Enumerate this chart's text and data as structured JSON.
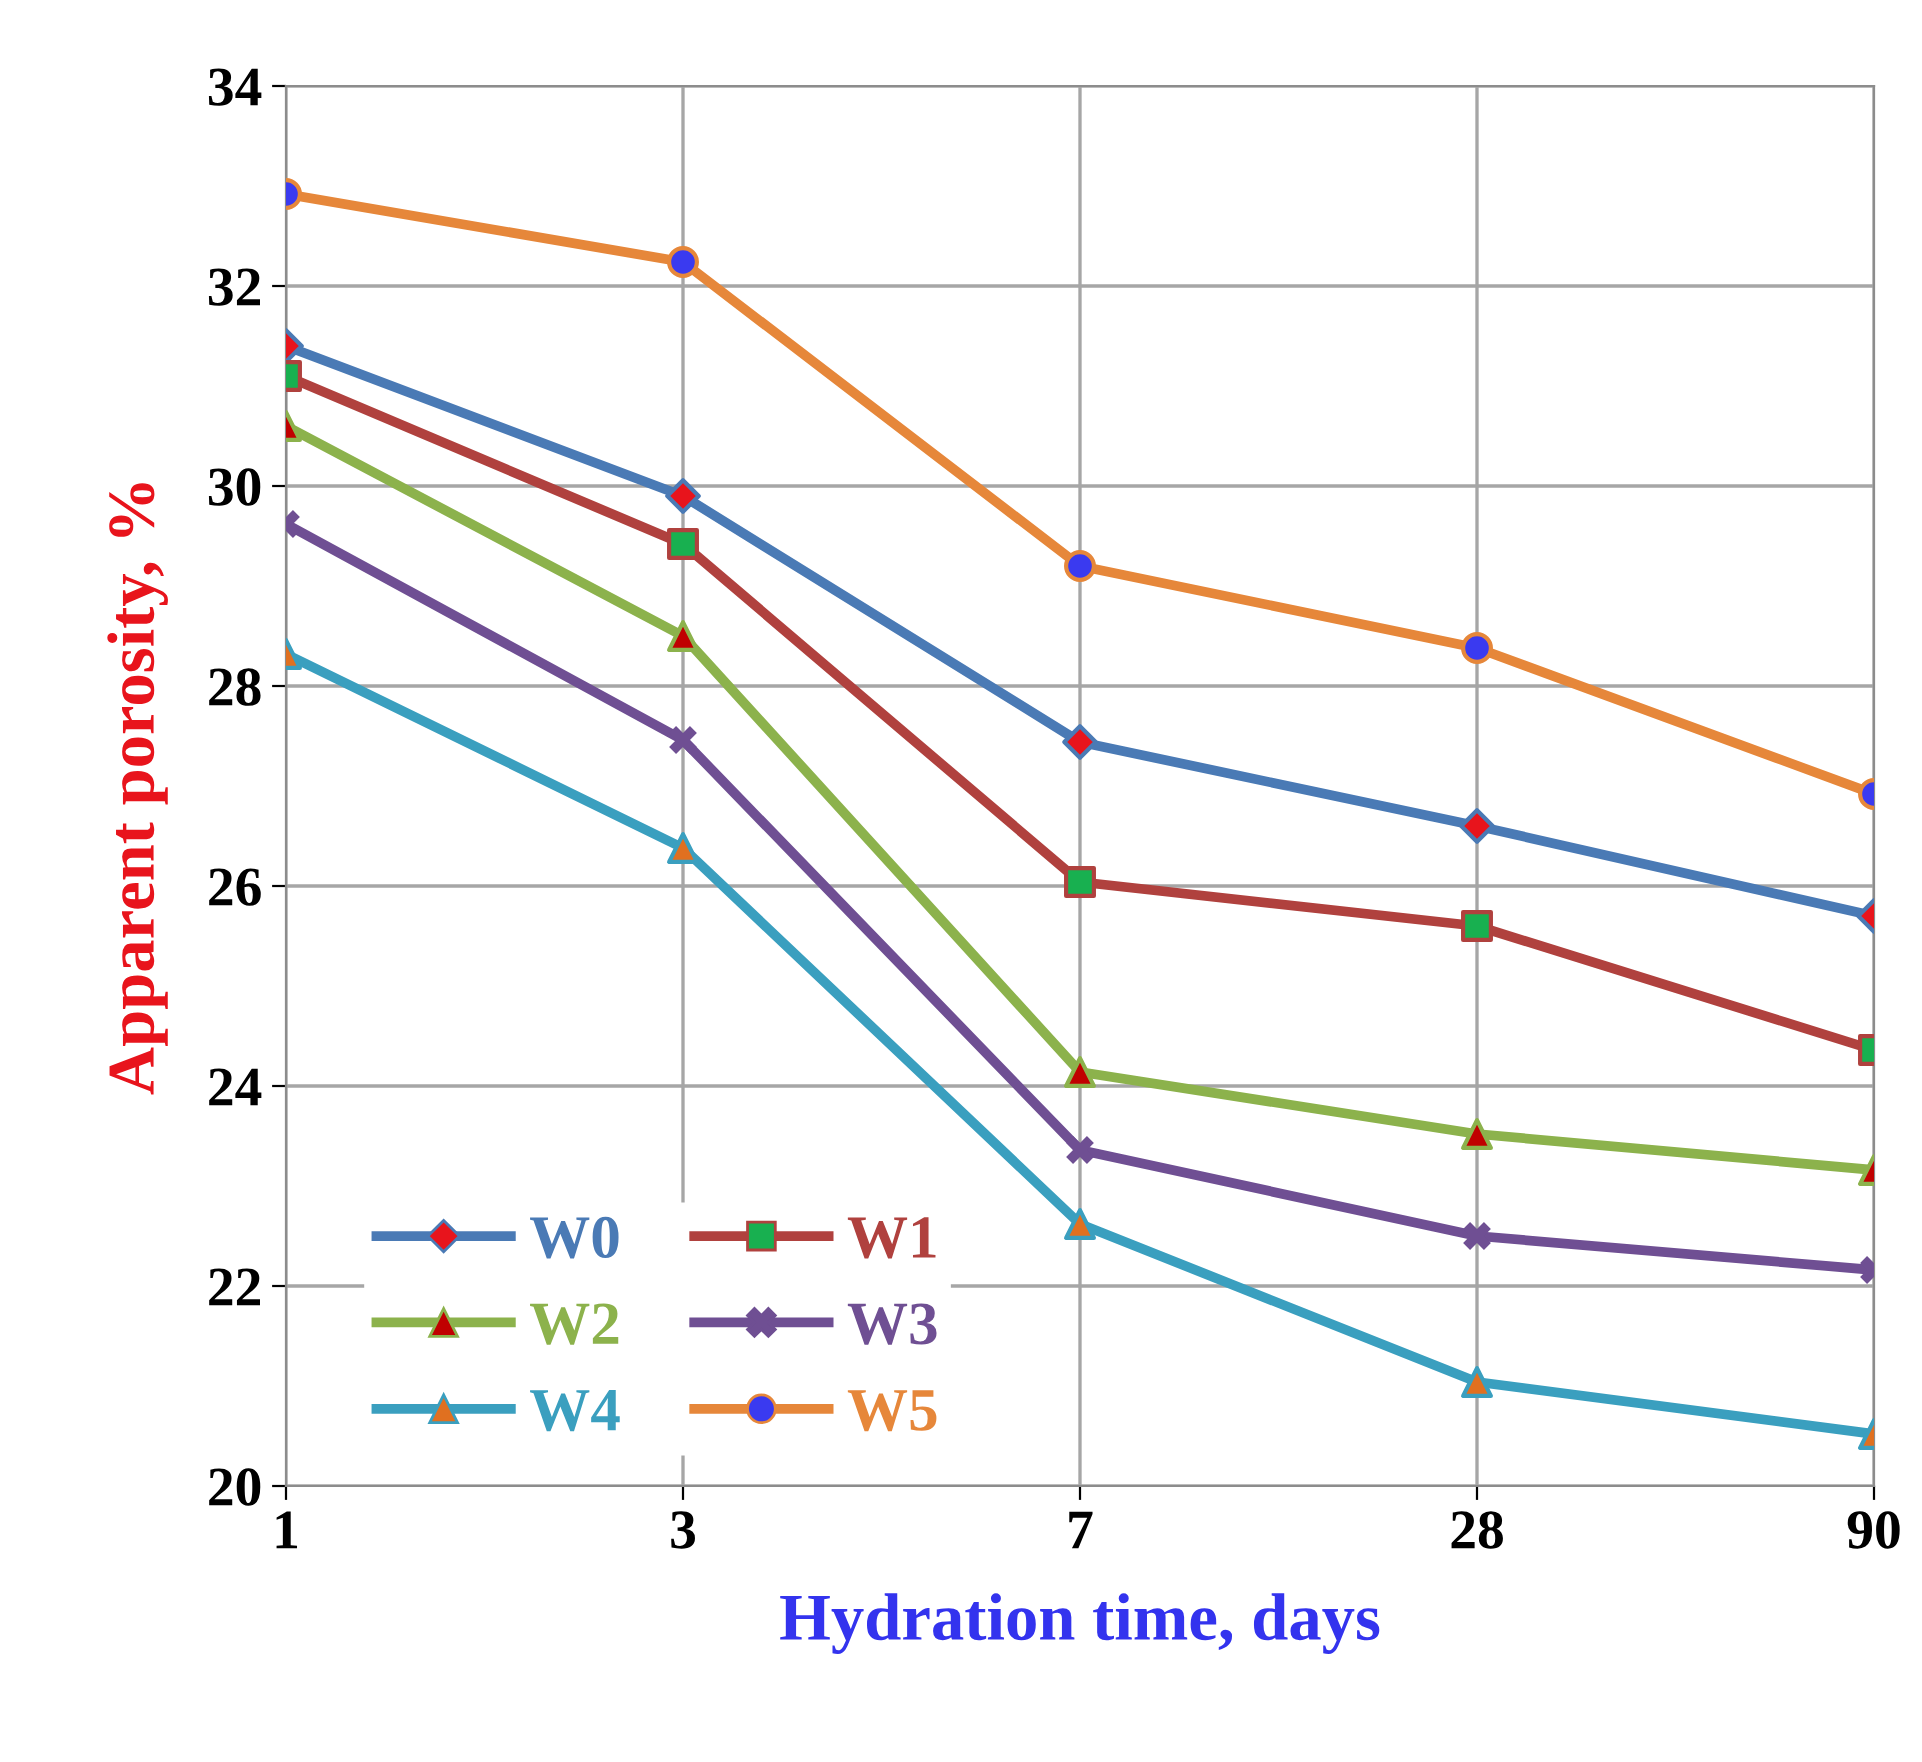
{
  "chart_data": {
    "type": "line",
    "xlabel": "Hydration time, days",
    "ylabel": "Apparent porosity, %",
    "categories": [
      "1",
      "3",
      "7",
      "28",
      "90"
    ],
    "ylim": [
      20,
      34
    ],
    "yticks": [
      20,
      22,
      24,
      26,
      28,
      30,
      32,
      34
    ],
    "grid": true,
    "legend": "bottom left",
    "series": [
      {
        "name": "W0",
        "color": "#4a7ab5",
        "marker": "diamond",
        "colors": [
          "#e8141c",
          "#e8141c",
          "#e8141c",
          "#e8141c",
          "#e8141c"
        ],
        "values": [
          31.4,
          29.9,
          27.44,
          26.6,
          25.7
        ]
      },
      {
        "name": "W1",
        "color": "#b0413e",
        "marker": "square",
        "colors": [
          "#18b050",
          "#18b050",
          "#18b050",
          "#18b050",
          "#18b050"
        ],
        "values": [
          31.1,
          29.42,
          26.04,
          25.6,
          24.36
        ]
      },
      {
        "name": "W2",
        "color": "#8cb24c",
        "marker": "triangle",
        "colors": [
          "#c00000",
          "#c00000",
          "#c00000",
          "#c00000",
          "#c00000"
        ],
        "values": [
          30.6,
          28.5,
          24.14,
          23.52,
          23.16
        ]
      },
      {
        "name": "W3",
        "color": "#6f4f93",
        "marker": "cross",
        "colors": [
          "#6f4f93",
          "#6f4f93",
          "#6f4f93",
          "#6f4f93",
          "#6f4f93"
        ],
        "values": [
          29.62,
          27.46,
          23.36,
          22.5,
          22.16
        ]
      },
      {
        "name": "W4",
        "color": "#3a9fbf",
        "marker": "triangle",
        "colors": [
          "#e07020",
          "#e07020",
          "#e07020",
          "#e07020",
          "#e07020"
        ],
        "values": [
          28.32,
          26.38,
          22.62,
          21.04,
          20.52
        ]
      },
      {
        "name": "W5",
        "color": "#e6873a",
        "marker": "circle",
        "colors": [
          "#3a3af0",
          "#3a3af0",
          "#3a3af0",
          "#3a3af0",
          "#3a3af0"
        ],
        "values": [
          32.92,
          32.24,
          29.2,
          28.38,
          26.92
        ]
      }
    ]
  }
}
